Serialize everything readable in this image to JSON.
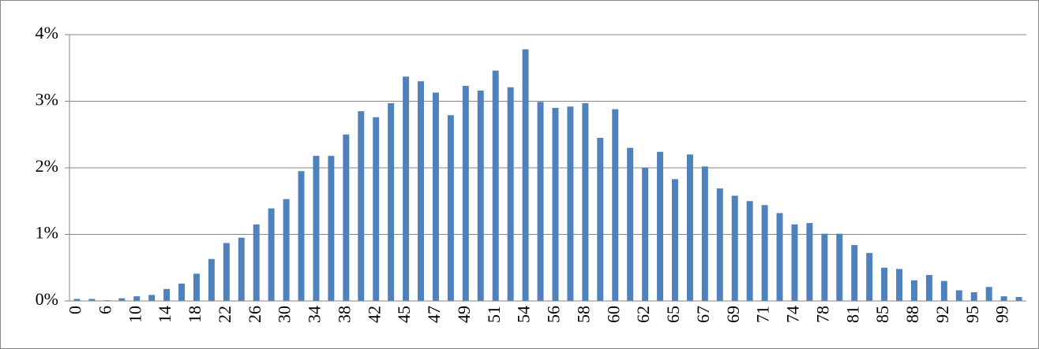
{
  "chart_data": {
    "type": "bar",
    "categories": [
      "0",
      null,
      "6",
      null,
      "10",
      null,
      "14",
      null,
      "18",
      null,
      "22",
      null,
      "26",
      null,
      "30",
      null,
      "34",
      null,
      "38",
      null,
      "42",
      null,
      "45",
      null,
      "47",
      null,
      "49",
      null,
      "51",
      null,
      "54",
      null,
      "56",
      null,
      "58",
      null,
      "60",
      null,
      "62",
      null,
      "65",
      null,
      "67",
      null,
      "69",
      null,
      "71",
      null,
      "74",
      null,
      "78",
      null,
      "81",
      null,
      "85",
      null,
      "88",
      null,
      "92",
      null,
      "95",
      null,
      "99",
      null
    ],
    "values": [
      0.03,
      0.03,
      0.01,
      0.04,
      0.07,
      0.09,
      0.18,
      0.26,
      0.41,
      0.63,
      0.87,
      0.95,
      1.15,
      1.39,
      1.53,
      1.95,
      2.18,
      2.18,
      2.5,
      2.85,
      2.76,
      2.97,
      3.37,
      3.3,
      3.13,
      2.79,
      3.23,
      3.16,
      3.46,
      3.21,
      3.78,
      2.99,
      2.9,
      2.92,
      2.97,
      2.45,
      2.88,
      2.3,
      2.0,
      2.24,
      1.83,
      2.2,
      2.02,
      1.69,
      1.58,
      1.5,
      1.44,
      1.32,
      1.15,
      1.17,
      1.01,
      1.01,
      0.84,
      0.72,
      0.5,
      0.48,
      0.31,
      0.39,
      0.3,
      0.16,
      0.13,
      0.21,
      0.07,
      0.06
    ],
    "color": "#4f81bd",
    "ylim": [
      0,
      4
    ],
    "yticks": [
      {
        "value": 0,
        "label": "0%"
      },
      {
        "value": 1,
        "label": "1%"
      },
      {
        "value": 2,
        "label": "2%"
      },
      {
        "value": 3,
        "label": "3%"
      },
      {
        "value": 4,
        "label": "4%"
      }
    ],
    "grid": true
  }
}
